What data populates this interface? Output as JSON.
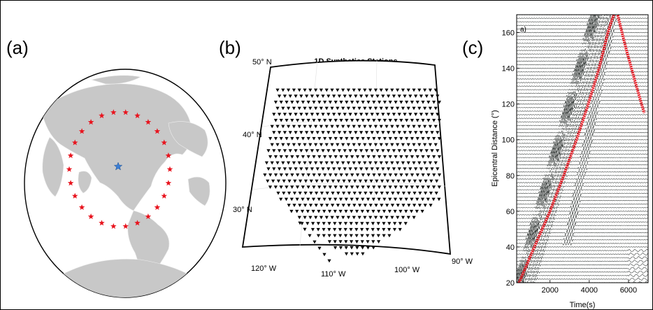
{
  "figure": {
    "panel_labels": [
      "(a)",
      "(b)",
      "(c)"
    ]
  },
  "panel_a": {
    "source_star_color": "#3b7fd6",
    "station_star_color": "#e8141e",
    "land_color": "#c8c8c8"
  },
  "panel_b": {
    "title": "1D Synthetics Stations",
    "lat_labels": [
      "50° N",
      "40° N",
      "30° N"
    ],
    "lon_labels": [
      "120° W",
      "110° W",
      "100° W",
      "90° W"
    ],
    "marker": "black-triangle"
  },
  "panel_c": {
    "inner_label": "a)",
    "chart_data": {
      "type": "line",
      "xlabel": "Time(s)",
      "ylabel": "Epicentral Distance (°)",
      "xlim": [
        300,
        7000
      ],
      "ylim": [
        20,
        170
      ],
      "x_ticks": [
        "2000",
        "4000",
        "6000"
      ],
      "y_ticks": [
        "20",
        "40",
        "60",
        "80",
        "100",
        "120",
        "140",
        "160"
      ],
      "trace_spacing_deg": 2,
      "series": [
        {
          "color": "#e8141e",
          "points": [
            [
              420,
              20
            ],
            [
              1200,
              40
            ],
            [
              2000,
              60
            ],
            [
              2700,
              80
            ],
            [
              3350,
              100
            ],
            [
              3950,
              120
            ],
            [
              4500,
              140
            ],
            [
              4950,
              160
            ],
            [
              5300,
              172
            ]
          ]
        },
        {
          "color": "#e8141e",
          "points": [
            [
              5400,
              172
            ],
            [
              5900,
              150
            ],
            [
              6400,
              130
            ],
            [
              6800,
              115
            ]
          ]
        }
      ]
    }
  }
}
